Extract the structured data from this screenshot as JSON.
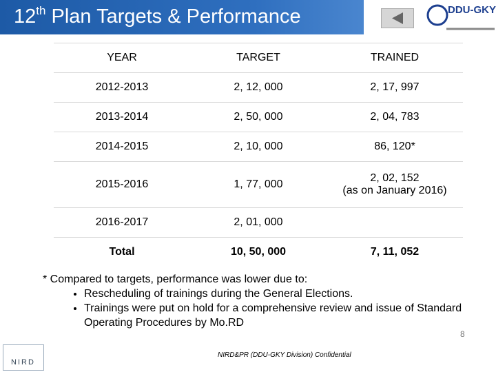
{
  "header": {
    "title_main": "12",
    "title_sup": "th",
    "title_rest": " Plan Targets & Performance",
    "logo": "DDU-GKY"
  },
  "table": {
    "columns": [
      "YEAR",
      "TARGET",
      "TRAINED"
    ],
    "rows": [
      [
        "2012-2013",
        "2, 12, 000",
        "2, 17, 997"
      ],
      [
        "2013-2014",
        "2, 50, 000",
        "2, 04, 783"
      ],
      [
        "2014-2015",
        "2, 10, 000",
        "86, 120*"
      ],
      [
        "2015-2016",
        "1, 77, 000",
        [
          "2, 02, 152",
          "(as on January 2016)"
        ]
      ],
      [
        "2016-2017",
        "2, 01, 000",
        null
      ],
      [
        "Total",
        "10, 50, 000",
        "7, 11, 052"
      ]
    ]
  },
  "notes": {
    "intro": "* Compared to targets,  performance was lower due to:",
    "bullets": [
      "Rescheduling of trainings during the General Elections.",
      "Trainings were put on hold for a comprehensive review and issue of Standard Operating Procedures by Mo.RD"
    ]
  },
  "footer": {
    "logo": "NIRD",
    "text": "NIRD&PR (DDU-GKY Division) Confidential",
    "page": "8"
  }
}
